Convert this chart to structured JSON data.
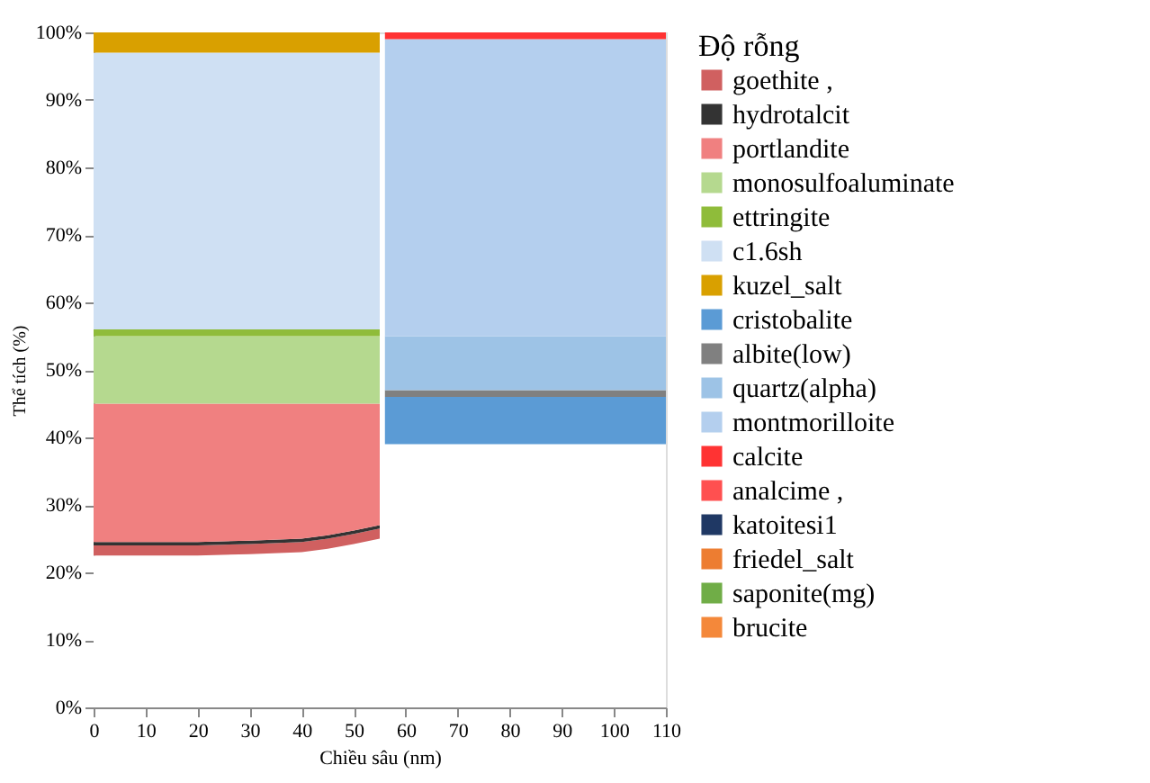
{
  "chart_data": {
    "type": "area",
    "stacked": true,
    "xlabel": "Chiều sâu (nm)",
    "ylabel": "Thể tích (%)",
    "x": [
      0,
      10,
      20,
      30,
      40,
      45,
      50,
      55,
      56,
      110
    ],
    "xlim": [
      0,
      110
    ],
    "xticks": [
      0,
      10,
      20,
      30,
      40,
      50,
      60,
      70,
      80,
      90,
      100,
      110
    ],
    "ylim": [
      0,
      100
    ],
    "yticks": [
      {
        "value": 0,
        "label": "0%"
      },
      {
        "value": 10,
        "label": "10%"
      },
      {
        "value": 20,
        "label": "20%"
      },
      {
        "value": 30,
        "label": "30%"
      },
      {
        "value": 40,
        "label": "40%"
      },
      {
        "value": 50,
        "label": "50%"
      },
      {
        "value": 60,
        "label": "60%"
      },
      {
        "value": 70,
        "label": "70%"
      },
      {
        "value": 80,
        "label": "80%"
      },
      {
        "value": 90,
        "label": "90%"
      },
      {
        "value": 100,
        "label": "100%"
      }
    ],
    "grid": false,
    "legend": "right",
    "legend_title": "Độ rỗng",
    "series": [
      {
        "color": "#ffffff",
        "values": [
          22.5,
          22.5,
          22.5,
          22.7,
          23,
          23.5,
          24.2,
          25,
          39,
          39
        ]
      },
      {
        "name": "goethite   ,",
        "color": "#d06060",
        "values": [
          1.5,
          1.5,
          1.5,
          1.5,
          1.5,
          1.5,
          1.5,
          1.5,
          null,
          null
        ]
      },
      {
        "name": "hydrotalcit",
        "color": "#333333",
        "values": [
          0.5,
          0.5,
          0.5,
          0.5,
          0.5,
          0.5,
          0.5,
          0.5,
          null,
          null
        ]
      },
      {
        "name": "portlandite",
        "color": "#f08080",
        "values": [
          20.5,
          20.5,
          20.5,
          20.3,
          20,
          19.5,
          18.8,
          18,
          null,
          null
        ]
      },
      {
        "name": "monosulfoaluminate",
        "color": "#b5d98f",
        "values": [
          10,
          10,
          10,
          10,
          10,
          10,
          10,
          10,
          null,
          null
        ]
      },
      {
        "name": "ettringite",
        "color": "#8fbc3a",
        "values": [
          1,
          1,
          1,
          1,
          1,
          1,
          1,
          1,
          null,
          null
        ]
      },
      {
        "name": "c1.6sh",
        "color": "#cfe0f3",
        "values": [
          41,
          41,
          41,
          41,
          41,
          41,
          41,
          41,
          null,
          null
        ]
      },
      {
        "name": "kuzel_salt",
        "color": "#d9a000",
        "values": [
          3,
          3,
          3,
          3,
          3,
          3,
          3,
          3,
          null,
          null
        ]
      },
      {
        "name": "cristobalite",
        "color": "#5b9bd5",
        "values": [
          null,
          null,
          null,
          null,
          null,
          null,
          null,
          null,
          7,
          7
        ]
      },
      {
        "name": "albite(low)",
        "color": "#808080",
        "values": [
          null,
          null,
          null,
          null,
          null,
          null,
          null,
          null,
          1,
          1
        ]
      },
      {
        "name": "quartz(alpha)",
        "color": "#9dc3e6",
        "values": [
          null,
          null,
          null,
          null,
          null,
          null,
          null,
          null,
          8,
          8
        ]
      },
      {
        "name": "montmorilloite",
        "color": "#b4cfee",
        "values": [
          null,
          null,
          null,
          null,
          null,
          null,
          null,
          null,
          44,
          44
        ]
      },
      {
        "name": "calcite",
        "color": "#ff3333",
        "values": [
          null,
          null,
          null,
          null,
          null,
          null,
          null,
          null,
          1,
          1
        ]
      },
      {
        "name": "analcime    ,",
        "color": "#ff5050",
        "values": [
          null,
          null,
          null,
          null,
          null,
          null,
          null,
          null,
          null,
          null
        ]
      },
      {
        "name": "katoitesi1",
        "color": "#1f3864",
        "values": [
          null,
          null,
          null,
          null,
          null,
          null,
          null,
          null,
          null,
          null
        ]
      },
      {
        "name": "friedel_salt",
        "color": "#ed7d31",
        "values": [
          null,
          null,
          null,
          null,
          null,
          null,
          null,
          null,
          null,
          null
        ]
      },
      {
        "name": "saponite(mg)",
        "color": "#70ad47",
        "values": [
          null,
          null,
          null,
          null,
          null,
          null,
          null,
          null,
          null,
          null
        ]
      },
      {
        "name": "brucite",
        "color": "#f4883a",
        "values": [
          null,
          null,
          null,
          null,
          null,
          null,
          null,
          null,
          null,
          null
        ]
      }
    ]
  }
}
